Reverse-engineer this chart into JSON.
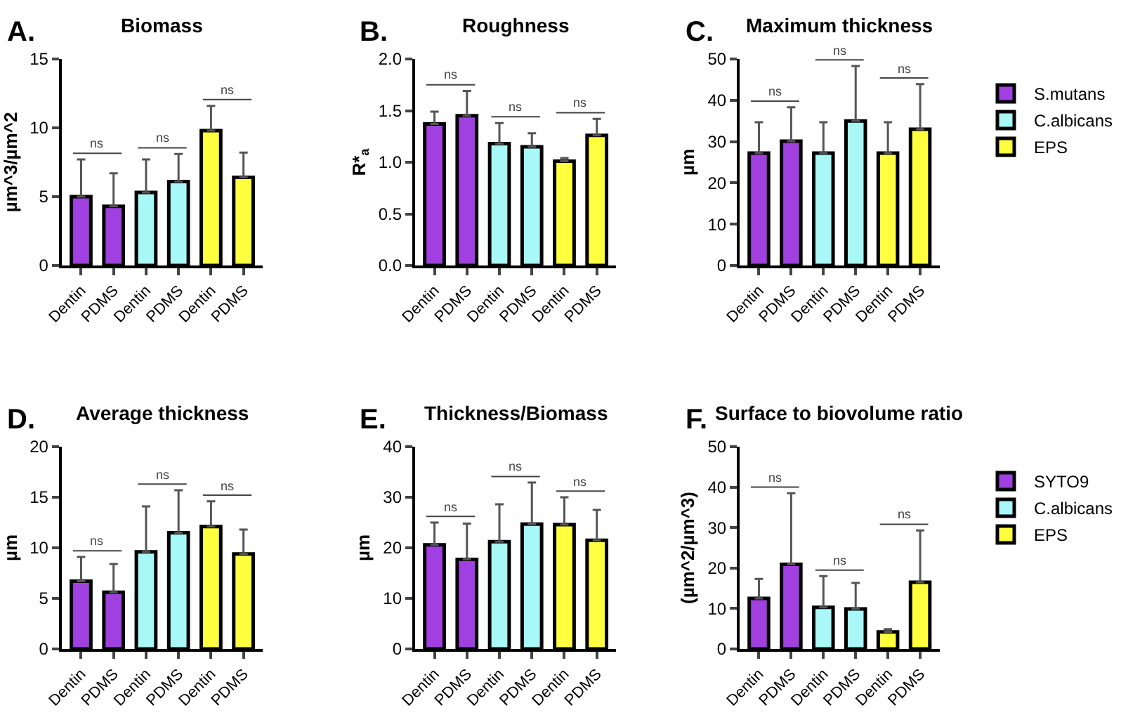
{
  "chart_data": [
    {
      "type": "bar",
      "title": "Biomass",
      "ylabel": "µm^3/µm^2",
      "annotations": [
        "A.",
        "ns",
        "ns",
        "ns"
      ],
      "categories": [
        "Dentin",
        "PDMS",
        "Dentin",
        "PDMS",
        "Dentin",
        "PDMS"
      ],
      "ylim": [
        0,
        15
      ],
      "yticks": [
        0,
        5,
        10,
        15
      ],
      "series": [
        {
          "color": "#a040e0",
          "values": [
            5.0,
            4.3,
            null,
            null,
            null,
            null
          ],
          "errors": [
            [
              5.0,
              7.7
            ],
            [
              4.3,
              6.7
            ],
            null,
            null,
            null,
            null
          ]
        },
        {
          "color": "#a8f8f8",
          "values": [
            null,
            null,
            5.3,
            6.1,
            null,
            null
          ],
          "errors": [
            null,
            null,
            [
              5.3,
              7.7
            ],
            [
              6.1,
              8.1
            ],
            null,
            null
          ]
        },
        {
          "color": "#ffff40",
          "values": [
            null,
            null,
            null,
            null,
            9.8,
            6.4
          ],
          "errors": [
            null,
            null,
            null,
            null,
            [
              9.8,
              11.6
            ],
            [
              6.4,
              8.2
            ]
          ]
        }
      ]
    },
    {
      "type": "bar",
      "title": "Roughness",
      "ylabel": "R*$_{a}$",
      "annotations": [
        "B.",
        "ns",
        "ns",
        "ns"
      ],
      "categories": [
        "Dentin",
        "PDMS",
        "Dentin",
        "PDMS",
        "Dentin",
        "PDMS"
      ],
      "ylim": [
        0,
        2
      ],
      "yticks": [
        {
          "value": 0,
          "label": "0.0"
        },
        {
          "value": 0.5,
          "label": "0.5"
        },
        {
          "value": 1,
          "label": "1.0"
        },
        {
          "value": 1.5,
          "label": "1.5"
        },
        {
          "value": 2,
          "label": "2.0"
        }
      ],
      "series": [
        {
          "color": "#a040e0",
          "values": [
            1.37,
            1.45,
            null,
            null,
            null,
            null
          ],
          "errors": [
            [
              1.37,
              1.49
            ],
            [
              1.45,
              1.69
            ],
            null,
            null,
            null,
            null
          ]
        },
        {
          "color": "#a8f8f8",
          "values": [
            null,
            null,
            1.18,
            1.15,
            null,
            null
          ],
          "errors": [
            null,
            null,
            [
              1.18,
              1.38
            ],
            [
              1.15,
              1.28
            ],
            null,
            null
          ]
        },
        {
          "color": "#ffff40",
          "values": [
            null,
            null,
            null,
            null,
            1.01,
            1.26
          ],
          "errors": [
            null,
            null,
            null,
            null,
            [
              1.01,
              1.04
            ],
            [
              1.26,
              1.42
            ]
          ]
        }
      ]
    },
    {
      "type": "bar",
      "title": "Maximum thickness",
      "ylabel": "µm",
      "annotations": [
        "C.",
        "ns",
        "ns",
        "ns"
      ],
      "categories": [
        "Dentin",
        "PDMS",
        "Dentin",
        "PDMS",
        "Dentin",
        "PDMS"
      ],
      "ylim": [
        0,
        50
      ],
      "yticks": [
        0,
        10,
        20,
        30,
        40,
        50
      ],
      "legend": "top right",
      "series": [
        {
          "name": "S.mutans",
          "color": "#a040e0",
          "values": [
            27.2,
            30.1,
            null,
            null,
            null,
            null
          ],
          "errors": [
            [
              27.2,
              34.7
            ],
            [
              30.1,
              38.3
            ],
            null,
            null,
            null,
            null
          ]
        },
        {
          "name": "C.albicans",
          "color": "#a8f8f8",
          "values": [
            null,
            null,
            27.2,
            35.0,
            null,
            null
          ],
          "errors": [
            null,
            null,
            [
              27.2,
              34.7
            ],
            [
              35.0,
              48.3
            ],
            null,
            null
          ]
        },
        {
          "name": "EPS",
          "color": "#ffff40",
          "values": [
            null,
            null,
            null,
            null,
            27.2,
            33.0
          ],
          "errors": [
            null,
            null,
            null,
            null,
            [
              27.2,
              34.7
            ],
            [
              33.0,
              43.9
            ]
          ]
        }
      ]
    },
    {
      "type": "bar",
      "title": "Average thickness",
      "ylabel": "µm",
      "annotations": [
        "D.",
        "ns",
        "ns",
        "ns"
      ],
      "categories": [
        "Dentin",
        "PDMS",
        "Dentin",
        "PDMS",
        "Dentin",
        "PDMS"
      ],
      "ylim": [
        0,
        20
      ],
      "yticks": [
        0,
        5,
        10,
        15,
        20
      ],
      "series": [
        {
          "color": "#a040e0",
          "values": [
            6.7,
            5.6,
            null,
            null,
            null,
            null
          ],
          "errors": [
            [
              6.7,
              9.1
            ],
            [
              5.6,
              8.4
            ],
            null,
            null,
            null,
            null
          ]
        },
        {
          "color": "#a8f8f8",
          "values": [
            null,
            null,
            9.6,
            11.5,
            null,
            null
          ],
          "errors": [
            null,
            null,
            [
              9.6,
              14.1
            ],
            [
              11.5,
              15.7
            ],
            null,
            null
          ]
        },
        {
          "color": "#ffff40",
          "values": [
            null,
            null,
            null,
            null,
            12.1,
            9.4
          ],
          "errors": [
            null,
            null,
            null,
            null,
            [
              12.1,
              14.6
            ],
            [
              9.4,
              11.8
            ]
          ]
        }
      ]
    },
    {
      "type": "bar",
      "title": "Thickness/Biomass",
      "ylabel": "µm",
      "annotations": [
        "E.",
        "ns",
        "ns",
        "ns"
      ],
      "categories": [
        "Dentin",
        "PDMS",
        "Dentin",
        "PDMS",
        "Dentin",
        "PDMS"
      ],
      "ylim": [
        0,
        40
      ],
      "yticks": [
        0,
        10,
        20,
        30,
        40
      ],
      "series": [
        {
          "color": "#a040e0",
          "values": [
            20.6,
            17.7,
            null,
            null,
            null,
            null
          ],
          "errors": [
            [
              20.6,
              25.0
            ],
            [
              17.7,
              24.8
            ],
            null,
            null,
            null,
            null
          ]
        },
        {
          "color": "#a8f8f8",
          "values": [
            null,
            null,
            21.2,
            24.7,
            null,
            null
          ],
          "errors": [
            null,
            null,
            [
              21.2,
              28.6
            ],
            [
              24.7,
              32.9
            ],
            null,
            null
          ]
        },
        {
          "color": "#ffff40",
          "values": [
            null,
            null,
            null,
            null,
            24.6,
            21.5
          ],
          "errors": [
            null,
            null,
            null,
            null,
            [
              24.6,
              30.0
            ],
            [
              21.5,
              27.5
            ]
          ]
        }
      ]
    },
    {
      "type": "bar",
      "title": "Surface to biovolume ratio",
      "ylabel": "(µm^2/µm^3)",
      "annotations": [
        "F.",
        "ns",
        "ns",
        "ns"
      ],
      "categories": [
        "Dentin",
        "PDMS",
        "Dentin",
        "PDMS",
        "Dentin",
        "PDMS"
      ],
      "ylim": [
        0,
        50
      ],
      "yticks": [
        0,
        10,
        20,
        30,
        40,
        50
      ],
      "legend": "top right",
      "series": [
        {
          "name": "SYTO9",
          "color": "#a040e0",
          "values": [
            12.5,
            20.9,
            null,
            null,
            null,
            null
          ],
          "errors": [
            [
              12.5,
              17.3
            ],
            [
              20.9,
              38.5
            ],
            null,
            null,
            null,
            null
          ]
        },
        {
          "name": "C.albicans",
          "color": "#a8f8f8",
          "values": [
            null,
            null,
            10.3,
            9.9,
            null,
            null
          ],
          "errors": [
            null,
            null,
            [
              10.3,
              18.0
            ],
            [
              9.9,
              16.3
            ],
            null,
            null
          ]
        },
        {
          "name": "EPS",
          "color": "#ffff40",
          "values": [
            null,
            null,
            null,
            null,
            4.2,
            16.5
          ],
          "errors": [
            null,
            null,
            null,
            null,
            [
              4.2,
              4.9
            ],
            [
              16.5,
              29.3
            ]
          ]
        }
      ]
    }
  ]
}
